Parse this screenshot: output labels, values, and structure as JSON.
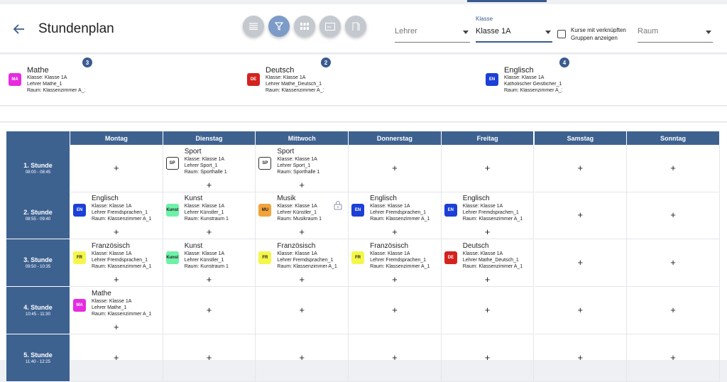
{
  "page": {
    "title": "Stundenplan"
  },
  "toolbar": {
    "buttons": [
      {
        "name": "list-view-button",
        "icon": "list-icon",
        "active": false
      },
      {
        "name": "filter-button",
        "icon": "filter-icon",
        "active": true
      },
      {
        "name": "grid-view-button",
        "icon": "grid-icon",
        "active": false
      },
      {
        "name": "classroom-view-button",
        "icon": "board-icon",
        "active": false
      },
      {
        "name": "room-view-button",
        "icon": "door-icon",
        "active": false
      }
    ]
  },
  "filters": {
    "teacher": {
      "placeholder": "Lehrer"
    },
    "class": {
      "label": "Klasse",
      "value": "Klasse 1A"
    },
    "linked_courses": {
      "line1": "Kurse mit verknüpften",
      "line2": "Gruppen anzeigen",
      "checked": false
    },
    "room": {
      "placeholder": "Raum"
    }
  },
  "unassigned_courses": [
    {
      "abbr": "MA",
      "color": "#e62be0",
      "name": "Mathe",
      "class": "Klasse: Klasse 1A",
      "teacher": "Lehrer Mathe_1",
      "room": "Raum: Klassenzimmer A_1",
      "count": "3"
    },
    {
      "abbr": "DE",
      "color": "#d4221e",
      "name": "Deutsch",
      "class": "Klasse: Klasse 1A",
      "teacher": "Lehrer Mathe_Deutsch_1",
      "room": "Raum: Klassenzimmer A_1",
      "count": "2"
    },
    {
      "abbr": "EN",
      "color": "#1c3fd6",
      "name": "Englisch",
      "class": "Klasse: Klasse 1A",
      "teacher": "Katholischer Geistlicher_1",
      "room": "Raum: Klassenzimmer A_1",
      "count": "4"
    }
  ],
  "timetable": {
    "days": [
      "Montag",
      "Dienstag",
      "Mittwoch",
      "Donnerstag",
      "Freitag",
      "Samstag",
      "Sonntag"
    ],
    "add_symbol": "+",
    "periods": [
      {
        "name": "1. Stunde",
        "time": "08:00 - 08:45"
      },
      {
        "name": "2. Stunde",
        "time": "08:55 - 09:40"
      },
      {
        "name": "3. Stunde",
        "time": "09:50 - 10:35"
      },
      {
        "name": "4. Stunde",
        "time": "10:45 - 11:30"
      },
      {
        "name": "5. Stunde",
        "time": "11:40 - 12:25"
      }
    ],
    "lessons": [
      [
        null,
        {
          "abbr": "SP",
          "color": "#ffffff",
          "text": "#222222",
          "border": "#333333",
          "name": "Sport",
          "class": "Klasse: Klasse 1A",
          "teacher": "Lehrer Sport_1",
          "room": "Raum: Sporthalle 1"
        },
        {
          "abbr": "SP",
          "color": "#ffffff",
          "text": "#222222",
          "border": "#333333",
          "name": "Sport",
          "class": "Klasse: Klasse 1A",
          "teacher": "Lehrer Sport_1",
          "room": "Raum: Sporthalle 1"
        },
        null,
        null,
        null,
        null
      ],
      [
        {
          "abbr": "EN",
          "color": "#1c3fd6",
          "text": "#ffffff",
          "name": "Englisch",
          "class": "Klasse: Klasse 1A",
          "teacher": "Lehrer Fremdsprachen_1",
          "room": "Raum: Klassenzimmer A_1"
        },
        {
          "abbr": "Kunst",
          "color": "#6ef2a8",
          "text": "#222222",
          "name": "Kunst",
          "class": "Klasse: Klasse 1A",
          "teacher": "Lehrer Künstler_1",
          "room": "Raum: Kunstraum 1"
        },
        {
          "abbr": "MU",
          "color": "#f2a33a",
          "text": "#222222",
          "name": "Musik",
          "class": "Klasse: Klasse 1A",
          "teacher": "Lehrer Künstler_1",
          "room": "Raum: Musikraum 1",
          "locked": true
        },
        {
          "abbr": "EN",
          "color": "#1c3fd6",
          "text": "#ffffff",
          "name": "Englisch",
          "class": "Klasse: Klasse 1A",
          "teacher": "Lehrer Fremdsprachen_1",
          "room": "Raum: Klassenzimmer A_1"
        },
        {
          "abbr": "EN",
          "color": "#1c3fd6",
          "text": "#ffffff",
          "name": "Englisch",
          "class": "Klasse: Klasse 1A",
          "teacher": "Lehrer Fremdsprachen_1",
          "room": "Raum: Klassenzimmer A_1"
        },
        null,
        null
      ],
      [
        {
          "abbr": "FR",
          "color": "#f4f74a",
          "text": "#222222",
          "name": "Französisch",
          "class": "Klasse: Klasse 1A",
          "teacher": "Lehrer Fremdsprachen_1",
          "room": "Raum: Klassenzimmer A_1"
        },
        {
          "abbr": "Kunst",
          "color": "#6ef2a8",
          "text": "#222222",
          "name": "Kunst",
          "class": "Klasse: Klasse 1A",
          "teacher": "Lehrer Künstler_1",
          "room": "Raum: Kunstraum 1"
        },
        {
          "abbr": "FR",
          "color": "#f4f74a",
          "text": "#222222",
          "name": "Französisch",
          "class": "Klasse: Klasse 1A",
          "teacher": "Lehrer Fremdsprachen_1",
          "room": "Raum: Klassenzimmer A_1"
        },
        {
          "abbr": "FR",
          "color": "#f4f74a",
          "text": "#222222",
          "name": "Französisch",
          "class": "Klasse: Klasse 1A",
          "teacher": "Lehrer Fremdsprachen_1",
          "room": "Raum: Klassenzimmer A_1"
        },
        {
          "abbr": "DE",
          "color": "#d4221e",
          "text": "#ffffff",
          "name": "Deutsch",
          "class": "Klasse: Klasse 1A",
          "teacher": "Lehrer Mathe_Deutsch_1",
          "room": "Raum: Klassenzimmer A_1"
        },
        null,
        null
      ],
      [
        {
          "abbr": "MA",
          "color": "#e62be0",
          "text": "#ffffff",
          "name": "Mathe",
          "class": "Klasse: Klasse 1A",
          "teacher": "Lehrer Mathe_1",
          "room": "Raum: Klassenzimmer A_1"
        },
        null,
        null,
        null,
        null,
        null,
        null
      ],
      [
        null,
        null,
        null,
        null,
        null,
        null,
        null
      ]
    ]
  }
}
